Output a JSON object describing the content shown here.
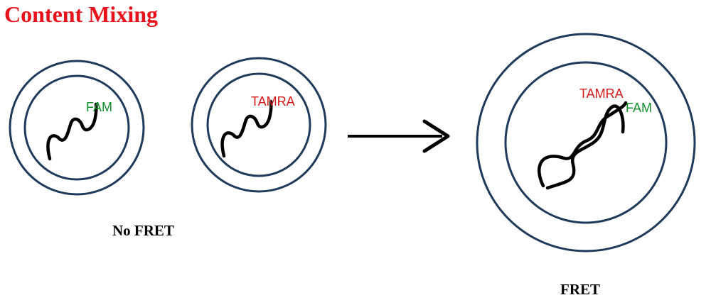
{
  "title": "Content Mixing",
  "no_fret_caption": "No FRET",
  "fret_caption": "FRET",
  "vesicle_left": {
    "dye_label": "FAM"
  },
  "vesicle_middle": {
    "dye_label": "TAMRA"
  },
  "vesicle_fused": {
    "dye_label_1": "TAMRA",
    "dye_label_2": "FAM"
  },
  "colors": {
    "title": "#e8121b",
    "ring": "#1f3a5a",
    "fam": "#12902a",
    "tamra": "#d41a1a",
    "strand": "#000000",
    "arrow": "#000000"
  },
  "icons": {
    "arrow": "right-arrow-icon"
  }
}
